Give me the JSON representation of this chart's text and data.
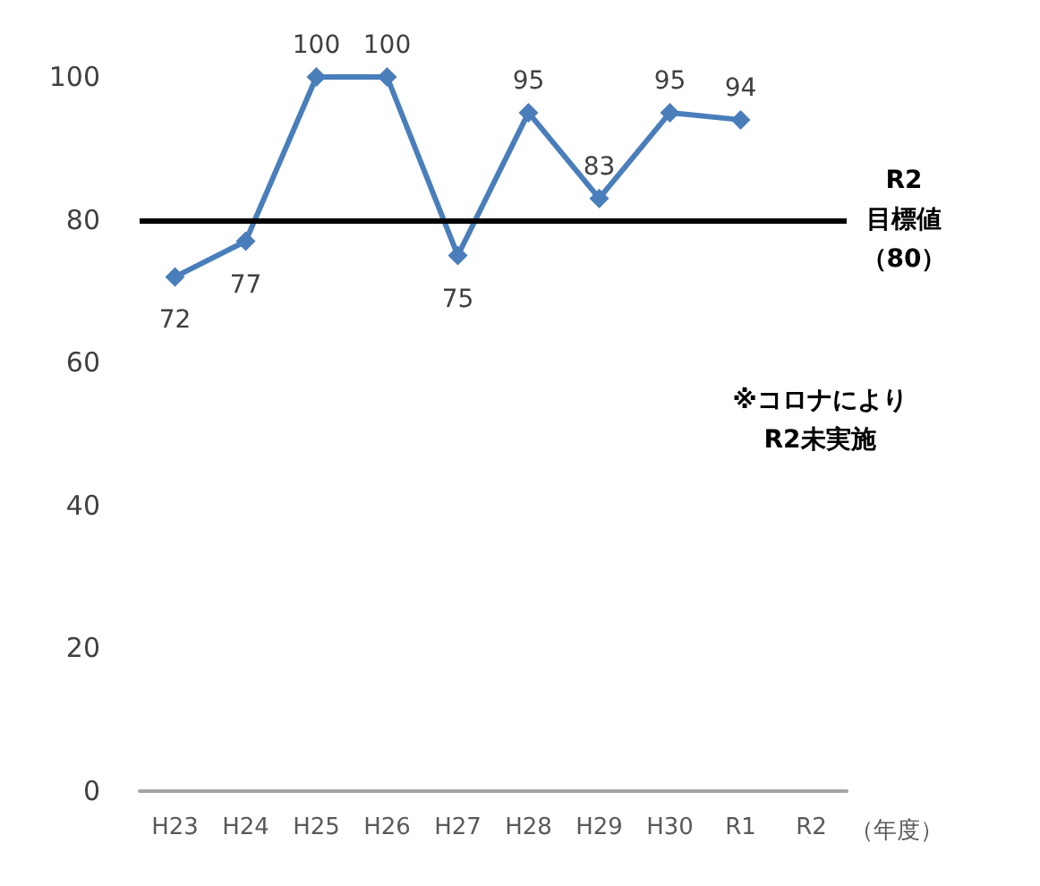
{
  "chart_data": {
    "type": "line",
    "xlabel": "（年度）",
    "categories": [
      "H23",
      "H24",
      "H25",
      "H26",
      "H27",
      "H28",
      "H29",
      "H30",
      "R1",
      "R2"
    ],
    "series": [
      {
        "color": "#4a7ebb",
        "values": [
          72,
          77,
          100,
          100,
          75,
          95,
          83,
          95,
          94,
          null
        ]
      }
    ],
    "ylim": [
      0,
      100
    ],
    "yticks": [
      0,
      20,
      40,
      60,
      80,
      100
    ],
    "grid": false,
    "marker": "diamond",
    "line_style": "solid",
    "data_labels": true,
    "ref_lines": [
      {
        "axis": "y",
        "value": 80,
        "label": "R2目標値（80）",
        "color": "#000000",
        "line_style": "solid"
      }
    ],
    "annotations": [
      "※コロナにより\nR2未実施"
    ]
  }
}
